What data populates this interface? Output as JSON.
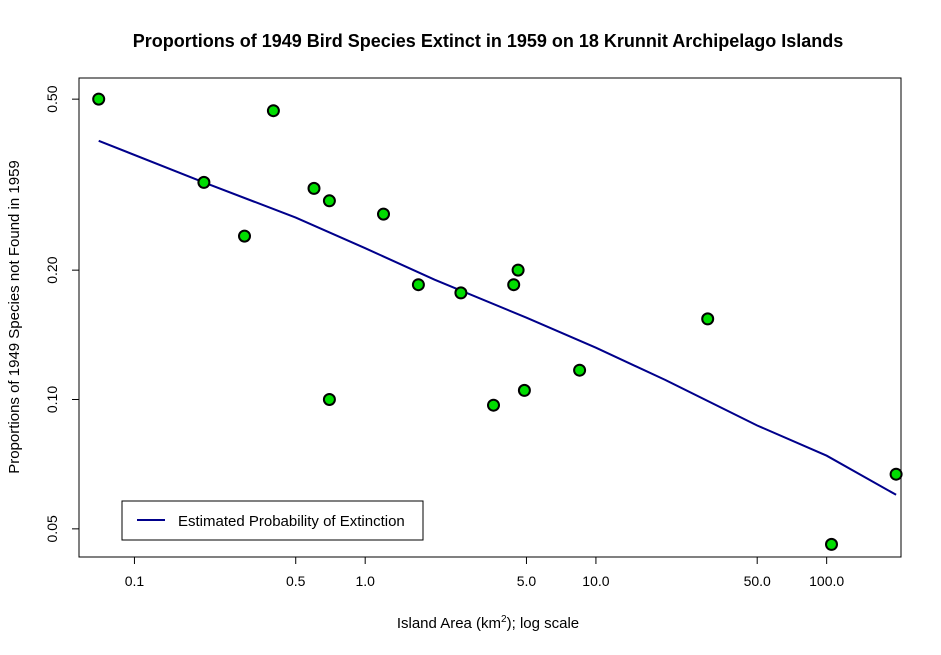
{
  "chart_data": {
    "type": "scatter",
    "title": "Proportions of 1949 Bird Species Extinct in 1959 on 18 Krunnit Archipelago Islands",
    "xlabel_pre": "Island Area (km",
    "xlabel_sup": "2",
    "xlabel_post": "); log scale",
    "ylabel": "Proportions of 1949 Species not Found in 1959",
    "x_scale": "log",
    "y_scale": "log",
    "xlim": [
      0.0575,
      210
    ],
    "ylim": [
      0.043,
      0.56
    ],
    "x_ticks": [
      0.1,
      0.5,
      1.0,
      5.0,
      10.0,
      50.0,
      100.0
    ],
    "x_tick_labels": [
      "0.1",
      "0.5",
      "1.0",
      "5.0",
      "10.0",
      "50.0",
      "100.0"
    ],
    "y_ticks": [
      0.05,
      0.1,
      0.2,
      0.5
    ],
    "y_tick_labels": [
      "0.05",
      "0.10",
      "0.20",
      "0.50"
    ],
    "grid": false,
    "legend_position": "bottom-left",
    "point_color": "#00dd00",
    "line_color": "#00008b",
    "points": {
      "x": [
        0.07,
        0.2,
        0.3,
        0.4,
        0.6,
        0.7,
        0.7,
        1.2,
        1.7,
        2.6,
        3.6,
        4.4,
        4.6,
        4.9,
        8.5,
        30.5,
        105,
        200
      ],
      "y": [
        0.5,
        0.32,
        0.24,
        0.47,
        0.31,
        0.29,
        0.1,
        0.27,
        0.185,
        0.177,
        0.097,
        0.185,
        0.2,
        0.105,
        0.117,
        0.154,
        0.046,
        0.067
      ]
    },
    "series": [
      {
        "name": "Estimated Probability of Extinction",
        "x": [
          0.07,
          0.2,
          0.5,
          1.0,
          2.0,
          5.0,
          10.0,
          20.0,
          50.0,
          100.0,
          200.0
        ],
        "y": [
          0.4,
          0.32,
          0.265,
          0.225,
          0.19,
          0.155,
          0.132,
          0.111,
          0.087,
          0.074,
          0.06
        ]
      }
    ]
  }
}
